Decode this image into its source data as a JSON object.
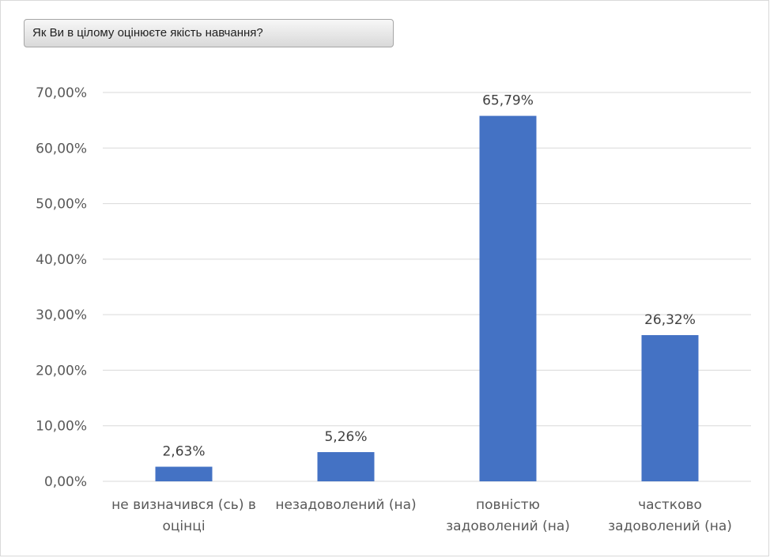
{
  "header": {
    "question_label": "Як Ви в цілому оцінюєте якість навчання?"
  },
  "colors": {
    "bar": "#4472c4",
    "grid": "#d9d9d9",
    "axis_text": "#595959"
  },
  "chart_data": {
    "type": "bar",
    "title": "",
    "xlabel": "",
    "ylabel": "",
    "ylim": [
      0,
      70
    ],
    "yticks": [
      0,
      10,
      20,
      30,
      40,
      50,
      60,
      70
    ],
    "ytick_labels": [
      "0,00%",
      "10,00%",
      "20,00%",
      "30,00%",
      "40,00%",
      "50,00%",
      "60,00%",
      "70,00%"
    ],
    "grid": true,
    "legend": "none",
    "categories": [
      [
        "не визначився (сь) в",
        "оцінці"
      ],
      [
        "незадоволений (на)"
      ],
      [
        "повністю",
        "задоволений (на)"
      ],
      [
        "частково",
        "задоволений (на)"
      ]
    ],
    "values": [
      2.63,
      5.26,
      65.79,
      26.32
    ],
    "data_labels": [
      "2,63%",
      "5,26%",
      "65,79%",
      "26,32%"
    ]
  }
}
